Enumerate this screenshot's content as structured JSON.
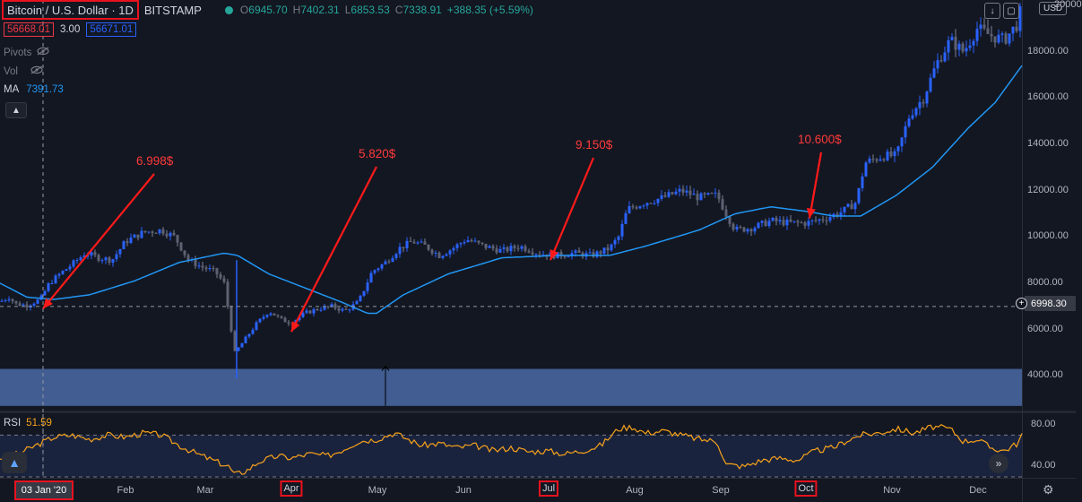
{
  "header": {
    "symbol": "Bitcoin / U.S. Dollar · 1D",
    "exchange": "BITSTAMP",
    "open_label": "O",
    "open": "6945.70",
    "high_label": "H",
    "high": "7402.31",
    "low_label": "L",
    "low": "6853.53",
    "close_label": "C",
    "close": "7338.91",
    "change": "+388.35 (+5.59%)",
    "bid": "56668.01",
    "spread": "3.00",
    "ask": "56671.01",
    "currency": "USD"
  },
  "indicators": {
    "pivots_label": "Pivots",
    "vol_label": "Vol",
    "ma_label": "MA",
    "ma_value": "7391.73",
    "rsi_label": "RSI",
    "rsi_value": "51.59"
  },
  "crosshair": {
    "date": "03 Jan '20",
    "price": "6998.30"
  },
  "colors": {
    "up": "#26a69a",
    "candle": "#2962ff",
    "ma": "#2196f3",
    "rsi": "#f7a21b",
    "annotation": "#ff1a1a"
  },
  "icons": [
    "eye-off-icon",
    "chevron-up-icon",
    "download-icon",
    "fullscreen-icon",
    "plus-circle-icon",
    "chevron-right-icon",
    "gear-icon",
    "logo-icon"
  ],
  "chart_data": [
    {
      "type": "candlestick",
      "title": "Bitcoin / U.S. Dollar · 1D",
      "x_labels": [
        "Feb",
        "Mar",
        "Apr",
        "May",
        "Jun",
        "Jul",
        "Aug",
        "Sep",
        "Oct",
        "Nov",
        "Dec"
      ],
      "highlighted_x_labels": [
        "Apr",
        "Jul",
        "Oct"
      ],
      "y_ticks": [
        "4000.00",
        "6000.00",
        "8000.00",
        "10000.00",
        "12000.00",
        "14000.00",
        "16000.00",
        "18000.00",
        "20000"
      ],
      "ylim": [
        2500,
        20000
      ],
      "price_series": [
        [
          0,
          7200
        ],
        [
          10,
          7400
        ],
        [
          18,
          7100
        ],
        [
          30,
          7050
        ],
        [
          45,
          7300
        ],
        [
          55,
          8000
        ],
        [
          70,
          8500
        ],
        [
          80,
          8800
        ],
        [
          95,
          9300
        ],
        [
          110,
          9100
        ],
        [
          125,
          9000
        ],
        [
          140,
          9800
        ],
        [
          160,
          10200
        ],
        [
          180,
          10300
        ],
        [
          195,
          10000
        ],
        [
          210,
          9000
        ],
        [
          225,
          8700
        ],
        [
          240,
          8500
        ],
        [
          250,
          8000
        ],
        [
          262,
          5000
        ],
        [
          270,
          5400
        ],
        [
          285,
          6200
        ],
        [
          300,
          6800
        ],
        [
          315,
          6400
        ],
        [
          325,
          6300
        ],
        [
          340,
          6700
        ],
        [
          355,
          6900
        ],
        [
          370,
          7000
        ],
        [
          385,
          6800
        ],
        [
          400,
          7200
        ],
        [
          415,
          8500
        ],
        [
          430,
          8900
        ],
        [
          445,
          9500
        ],
        [
          460,
          9800
        ],
        [
          475,
          9600
        ],
        [
          490,
          9200
        ],
        [
          505,
          9500
        ],
        [
          520,
          9900
        ],
        [
          540,
          9600
        ],
        [
          560,
          9400
        ],
        [
          580,
          9600
        ],
        [
          600,
          9300
        ],
        [
          620,
          9200
        ],
        [
          640,
          9300
        ],
        [
          660,
          9200
        ],
        [
          680,
          9500
        ],
        [
          690,
          10000
        ],
        [
          700,
          11200
        ],
        [
          720,
          11500
        ],
        [
          740,
          11700
        ],
        [
          760,
          12000
        ],
        [
          780,
          11700
        ],
        [
          800,
          11800
        ],
        [
          810,
          11000
        ],
        [
          820,
          10300
        ],
        [
          840,
          10400
        ],
        [
          860,
          10700
        ],
        [
          880,
          10600
        ],
        [
          900,
          10600
        ],
        [
          920,
          10800
        ],
        [
          940,
          11100
        ],
        [
          955,
          11500
        ],
        [
          965,
          13200
        ],
        [
          985,
          13500
        ],
        [
          1000,
          13500
        ],
        [
          1015,
          15300
        ],
        [
          1030,
          16000
        ],
        [
          1045,
          17500
        ],
        [
          1060,
          18500
        ],
        [
          1075,
          18000
        ],
        [
          1090,
          19000
        ],
        [
          1105,
          18700
        ],
        [
          1120,
          18500
        ],
        [
          1135,
          19200
        ],
        [
          1140,
          20000
        ]
      ],
      "ma_series": [
        [
          0,
          8000
        ],
        [
          30,
          7400
        ],
        [
          60,
          7300
        ],
        [
          100,
          7500
        ],
        [
          150,
          8100
        ],
        [
          200,
          8900
        ],
        [
          250,
          9300
        ],
        [
          265,
          9200
        ],
        [
          300,
          8400
        ],
        [
          340,
          7800
        ],
        [
          380,
          7200
        ],
        [
          410,
          6700
        ],
        [
          420,
          6700
        ],
        [
          450,
          7500
        ],
        [
          500,
          8400
        ],
        [
          560,
          9100
        ],
        [
          620,
          9200
        ],
        [
          680,
          9200
        ],
        [
          720,
          9600
        ],
        [
          780,
          10300
        ],
        [
          820,
          11000
        ],
        [
          860,
          11300
        ],
        [
          900,
          11100
        ],
        [
          930,
          10900
        ],
        [
          960,
          10900
        ],
        [
          1000,
          11800
        ],
        [
          1040,
          13000
        ],
        [
          1080,
          14700
        ],
        [
          1110,
          15800
        ],
        [
          1140,
          17400
        ]
      ],
      "crosshair_price": 6998.3,
      "volume_band": [
        2700,
        4300
      ],
      "annotations": [
        {
          "text": "6.998$",
          "anchor_x": 48,
          "anchor_price": 6900
        },
        {
          "text": "5.820$",
          "anchor_x": 325,
          "anchor_price": 5900
        },
        {
          "text": "9.150$",
          "anchor_x": 614,
          "anchor_price": 9000
        },
        {
          "text": "10.600$",
          "anchor_x": 903,
          "anchor_price": 10800
        }
      ]
    },
    {
      "type": "line",
      "title": "RSI",
      "y_ticks": [
        "40.00",
        "80.00"
      ],
      "ylim": [
        30,
        90
      ],
      "bands": [
        30,
        70
      ],
      "series": [
        [
          0,
          48
        ],
        [
          20,
          52
        ],
        [
          40,
          60
        ],
        [
          60,
          68
        ],
        [
          80,
          70
        ],
        [
          100,
          66
        ],
        [
          120,
          70
        ],
        [
          140,
          68
        ],
        [
          160,
          72
        ],
        [
          180,
          70
        ],
        [
          200,
          60
        ],
        [
          220,
          52
        ],
        [
          240,
          45
        ],
        [
          255,
          40
        ],
        [
          262,
          32
        ],
        [
          275,
          36
        ],
        [
          290,
          45
        ],
        [
          310,
          50
        ],
        [
          325,
          48
        ],
        [
          345,
          52
        ],
        [
          365,
          50
        ],
        [
          380,
          55
        ],
        [
          400,
          64
        ],
        [
          420,
          66
        ],
        [
          440,
          72
        ],
        [
          455,
          66
        ],
        [
          470,
          60
        ],
        [
          490,
          62
        ],
        [
          510,
          58
        ],
        [
          530,
          60
        ],
        [
          550,
          55
        ],
        [
          570,
          58
        ],
        [
          590,
          54
        ],
        [
          610,
          55
        ],
        [
          630,
          52
        ],
        [
          650,
          55
        ],
        [
          670,
          60
        ],
        [
          690,
          76
        ],
        [
          705,
          78
        ],
        [
          720,
          72
        ],
        [
          740,
          74
        ],
        [
          760,
          70
        ],
        [
          780,
          66
        ],
        [
          800,
          64
        ],
        [
          810,
          42
        ],
        [
          830,
          40
        ],
        [
          850,
          46
        ],
        [
          870,
          48
        ],
        [
          890,
          46
        ],
        [
          910,
          55
        ],
        [
          930,
          58
        ],
        [
          945,
          65
        ],
        [
          960,
          70
        ],
        [
          980,
          72
        ],
        [
          1000,
          76
        ],
        [
          1020,
          72
        ],
        [
          1040,
          78
        ],
        [
          1060,
          76
        ],
        [
          1075,
          64
        ],
        [
          1090,
          66
        ],
        [
          1105,
          58
        ],
        [
          1120,
          55
        ],
        [
          1135,
          62
        ],
        [
          1140,
          70
        ]
      ]
    }
  ]
}
